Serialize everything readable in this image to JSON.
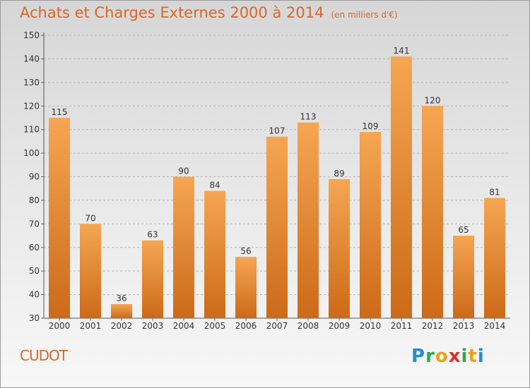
{
  "title": "Achats et Charges Externes 2000 à 2014",
  "subtitle": "(en milliers d'€)",
  "commune": "CUDOT",
  "logo": {
    "letters": [
      "P",
      "r",
      "o",
      "x",
      "i",
      "t",
      "i"
    ],
    "colors": [
      "#1f8fd6",
      "#2fa84f",
      "#e8a21b",
      "#d8322a",
      "#2fa84f",
      "#e8a21b",
      "#1f8fd6"
    ]
  },
  "colors": {
    "bar_top": "#f5a653",
    "bar_bottom": "#cc6a18",
    "title": "#d9672a"
  },
  "chart_data": {
    "type": "bar",
    "categories": [
      "2000",
      "2001",
      "2002",
      "2003",
      "2004",
      "2005",
      "2006",
      "2007",
      "2008",
      "2009",
      "2010",
      "2011",
      "2012",
      "2013",
      "2014"
    ],
    "values": [
      115,
      70,
      36,
      63,
      90,
      84,
      56,
      107,
      113,
      89,
      109,
      141,
      120,
      65,
      81
    ],
    "ylim": [
      30,
      150
    ],
    "yticks": [
      30,
      40,
      50,
      60,
      70,
      80,
      90,
      100,
      110,
      120,
      130,
      140,
      150
    ],
    "grid": true
  }
}
